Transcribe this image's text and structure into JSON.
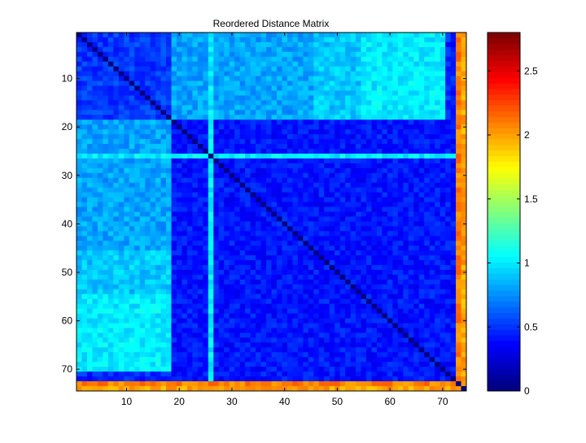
{
  "chart_data": {
    "type": "heatmap",
    "title": "Reordered Distance Matrix",
    "n": 74,
    "xlim": [
      0.5,
      74.5
    ],
    "ylim": [
      0.5,
      74.5
    ],
    "x_ticks": [
      10,
      20,
      30,
      40,
      50,
      60,
      70
    ],
    "y_ticks": [
      10,
      20,
      30,
      40,
      50,
      60,
      70
    ],
    "y_direction": "reverse",
    "colormap": "jet",
    "color_limits": [
      0,
      2.8
    ],
    "colorbar_ticks": [
      0,
      0.5,
      1,
      1.5,
      2,
      2.5
    ],
    "colorbar_tick_labels": [
      "0",
      "0.5",
      "1",
      "1.5",
      "2",
      "2.5"
    ],
    "diagonal_value": 0,
    "block_estimates": [
      {
        "rows": [
          1,
          18
        ],
        "cols": [
          1,
          18
        ],
        "value": 0.5
      },
      {
        "rows": [
          19,
          74
        ],
        "cols": [
          19,
          74
        ],
        "value": 0.4
      },
      {
        "rows": [
          1,
          18
        ],
        "cols": [
          19,
          45
        ],
        "value": 0.8
      },
      {
        "rows": [
          1,
          18
        ],
        "cols": [
          46,
          62
        ],
        "value": 0.9
      },
      {
        "rows": [
          1,
          18
        ],
        "cols": [
          63,
          68
        ],
        "value": 1.2
      },
      {
        "rows": [
          55,
          70
        ],
        "cols": [
          1,
          18
        ],
        "value": 1.0
      }
    ],
    "band_estimates": [
      {
        "index": 26,
        "value": 1.0
      },
      {
        "index": 73,
        "value": 2.1
      },
      {
        "index": 74,
        "value": 2.0
      }
    ]
  }
}
